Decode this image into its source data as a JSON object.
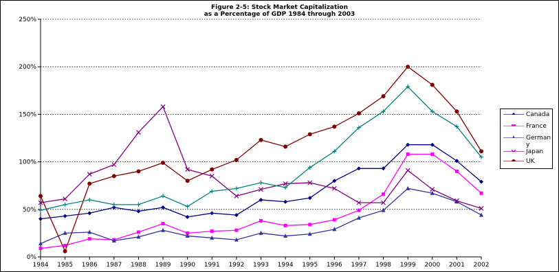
{
  "chart_data": {
    "type": "line",
    "title_line1": "Figure 2-5: Stock Market Capitalization",
    "title_line2": "as a Percentage of GDP 1984 through 2003",
    "xlabel": "",
    "ylabel": "",
    "ylim": [
      0,
      250
    ],
    "y_ticks": [
      "0%",
      "50%",
      "100%",
      "150%",
      "200%",
      "250%"
    ],
    "y_tick_values": [
      0,
      50,
      100,
      150,
      200,
      250
    ],
    "categories": [
      "1984",
      "1985",
      "1986",
      "1987",
      "1988",
      "1989",
      "1990",
      "1991",
      "1992",
      "1993",
      "1994",
      "1995",
      "1996",
      "1997",
      "1998",
      "1999",
      "2000",
      "2001",
      "2002"
    ],
    "grid": "horizontal dotted",
    "legend_position": "right",
    "series": [
      {
        "name": "Canada",
        "color": "#000080",
        "marker": "diamond",
        "values": [
          40,
          43,
          46,
          52,
          48,
          52,
          42,
          46,
          44,
          60,
          58,
          62,
          80,
          93,
          93,
          118,
          118,
          101,
          79
        ]
      },
      {
        "name": "France",
        "color": "#FF00FF",
        "marker": "square",
        "values": [
          9,
          12,
          19,
          18,
          26,
          35,
          25,
          27,
          28,
          38,
          33,
          34,
          39,
          49,
          66,
          108,
          108,
          90,
          67
        ]
      },
      {
        "name": "German\ny",
        "color": "#333399",
        "marker": "triangle",
        "values": [
          14,
          25,
          26,
          17,
          21,
          28,
          22,
          20,
          18,
          25,
          22,
          24,
          29,
          41,
          49,
          72,
          67,
          58,
          44
        ]
      },
      {
        "name": "Japan",
        "color": "#800080",
        "marker": "x",
        "values": [
          57,
          61,
          87,
          97,
          131,
          158,
          92,
          85,
          64,
          71,
          77,
          78,
          72,
          57,
          57,
          91,
          71,
          59,
          51
        ]
      },
      {
        "name": "UK",
        "color": "#800000",
        "marker": "circle",
        "values": [
          64,
          6,
          77,
          85,
          90,
          99,
          80,
          92,
          102,
          123,
          116,
          129,
          137,
          151,
          169,
          200,
          181,
          153,
          111
        ]
      },
      {
        "name": "",
        "color": "#008080",
        "marker": "plus",
        "values": [
          49,
          55,
          60,
          55,
          55,
          64,
          53,
          69,
          72,
          78,
          73,
          94,
          111,
          136,
          153,
          179,
          153,
          137,
          105
        ]
      }
    ]
  }
}
